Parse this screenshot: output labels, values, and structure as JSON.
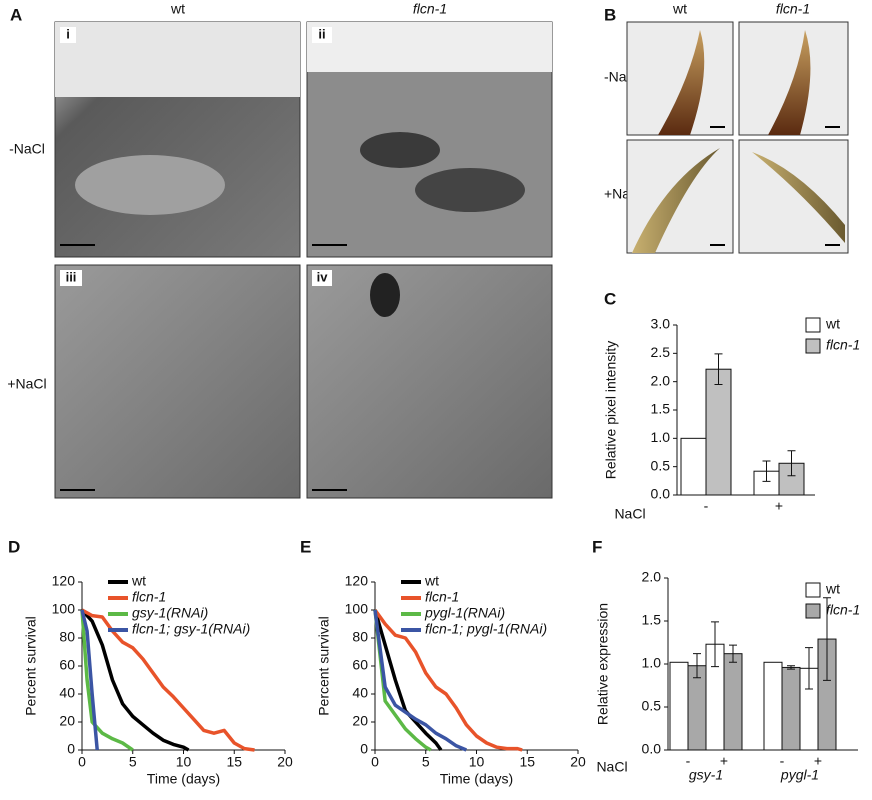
{
  "figure": {
    "A": {
      "panel": "A",
      "columns": [
        "wt",
        "flcn-1"
      ],
      "rows": [
        "-NaCl",
        "+NaCl"
      ],
      "subpanels": [
        "i",
        "ii",
        "iii",
        "iv"
      ]
    },
    "B": {
      "panel": "B",
      "columns": [
        "wt",
        "flcn-1"
      ],
      "rows": [
        "-NaCl",
        "+NaCl"
      ]
    }
  },
  "chart_data": [
    {
      "type": "bar",
      "panel": "C",
      "y_label": "Relative pixel intensity",
      "x_label": "NaCl",
      "categories": [
        "-",
        "+"
      ],
      "series": [
        {
          "name": "wt",
          "color": "#ffffff",
          "values": [
            1.0,
            0.42
          ],
          "errors": [
            null,
            0.18
          ]
        },
        {
          "name": "flcn-1",
          "color": "#c0c0c0",
          "font_style": "italic",
          "values": [
            2.22,
            0.56
          ],
          "errors": [
            0.27,
            0.22
          ]
        }
      ],
      "ylim": [
        0,
        3
      ],
      "yticks": [
        {
          "value": 0,
          "label": "0.0"
        },
        {
          "value": 0.5,
          "label": "0.5"
        },
        {
          "value": 1,
          "label": "1.0"
        },
        {
          "value": 1.5,
          "label": "1.5"
        },
        {
          "value": 2,
          "label": "2.0"
        },
        {
          "value": 2.5,
          "label": "2.5"
        },
        {
          "value": 3,
          "label": "3.0"
        }
      ]
    },
    {
      "type": "line",
      "panel": "D",
      "x_label": "Time (days)",
      "y_label": "Percent survival",
      "series": [
        {
          "name": "wt",
          "color": "#000000",
          "x": [
            0,
            1,
            2,
            3,
            4,
            5,
            6,
            7,
            8,
            9,
            10,
            10.5
          ],
          "values": [
            100,
            92,
            75,
            50,
            33,
            24,
            18,
            12,
            7,
            4,
            2,
            0
          ]
        },
        {
          "name": "flcn-1",
          "color": "#e8532a",
          "font_style": "italic",
          "x": [
            0,
            1,
            2,
            3,
            4,
            5,
            6,
            7,
            8,
            9,
            10,
            11,
            12,
            13,
            14,
            15,
            16,
            17
          ],
          "values": [
            100,
            96,
            95,
            85,
            77,
            73,
            65,
            55,
            45,
            38,
            30,
            22,
            14,
            12,
            14,
            5,
            1,
            0
          ]
        },
        {
          "name": "gsy-1(RNAi)",
          "color": "#5cb946",
          "font_style": "italic",
          "x": [
            0,
            0.5,
            1,
            2,
            3,
            4,
            5
          ],
          "values": [
            100,
            50,
            20,
            12,
            8,
            5,
            0
          ]
        },
        {
          "name": "flcn-1; gsy-1(RNAi)",
          "color": "#3b55a4",
          "font_style": "italic",
          "x": [
            0,
            0.5,
            1,
            1.5
          ],
          "values": [
            100,
            85,
            40,
            0
          ]
        }
      ],
      "xlim": [
        0,
        20
      ],
      "xticks": [
        0,
        5,
        10,
        15,
        20
      ],
      "ylim": [
        0,
        120
      ],
      "yticks": [
        0,
        20,
        40,
        60,
        80,
        100,
        120
      ]
    },
    {
      "type": "line",
      "panel": "E",
      "x_label": "Time (days)",
      "y_label": "Percent survival",
      "series": [
        {
          "name": "wt",
          "color": "#000000",
          "x": [
            0,
            1,
            2,
            3,
            4,
            5,
            6,
            6.5
          ],
          "values": [
            100,
            75,
            50,
            28,
            20,
            12,
            5,
            0
          ]
        },
        {
          "name": "flcn-1",
          "color": "#e8532a",
          "font_style": "italic",
          "x": [
            0,
            1,
            2,
            3,
            4,
            5,
            6,
            7,
            8,
            9,
            10,
            11,
            12,
            13,
            14,
            14.5
          ],
          "values": [
            100,
            90,
            82,
            80,
            70,
            55,
            45,
            40,
            30,
            18,
            10,
            5,
            2,
            1,
            1,
            0
          ]
        },
        {
          "name": "pygl-1(RNAi)",
          "color": "#5cb946",
          "font_style": "italic",
          "x": [
            0,
            1,
            2,
            3,
            4,
            5,
            5.5
          ],
          "values": [
            100,
            35,
            25,
            15,
            8,
            2,
            0
          ]
        },
        {
          "name": "flcn-1; pygl-1(RNAi)",
          "color": "#3b55a4",
          "font_style": "italic",
          "x": [
            0,
            1,
            2,
            3,
            4,
            5,
            6,
            7,
            8,
            9
          ],
          "values": [
            100,
            45,
            32,
            27,
            22,
            18,
            12,
            8,
            3,
            0
          ]
        }
      ],
      "xlim": [
        0,
        20
      ],
      "xticks": [
        0,
        5,
        10,
        15,
        20
      ],
      "ylim": [
        0,
        120
      ],
      "yticks": [
        0,
        20,
        40,
        60,
        80,
        100,
        120
      ]
    },
    {
      "type": "bar",
      "panel": "F",
      "y_label": "Relative expression",
      "x_label": "NaCl",
      "categories": [
        "-",
        "+",
        "-",
        "+"
      ],
      "groups": [
        "gsy-1",
        "pygl-1"
      ],
      "series": [
        {
          "name": "wt",
          "color": "#ffffff",
          "values": [
            1.02,
            1.23,
            1.02,
            0.95
          ],
          "errors": [
            null,
            0.26,
            null,
            0.24
          ]
        },
        {
          "name": "flcn-1",
          "color": "#a8a8a8",
          "font_style": "italic",
          "values": [
            0.98,
            1.12,
            0.96,
            1.29
          ],
          "errors": [
            0.14,
            0.1,
            0.02,
            0.48
          ]
        }
      ],
      "ylim": [
        0,
        2
      ],
      "yticks": [
        {
          "value": 0,
          "label": "0.0"
        },
        {
          "value": 0.5,
          "label": "0.5"
        },
        {
          "value": 1,
          "label": "1.0"
        },
        {
          "value": 1.5,
          "label": "1.5"
        },
        {
          "value": 2,
          "label": "2.0"
        }
      ]
    }
  ]
}
